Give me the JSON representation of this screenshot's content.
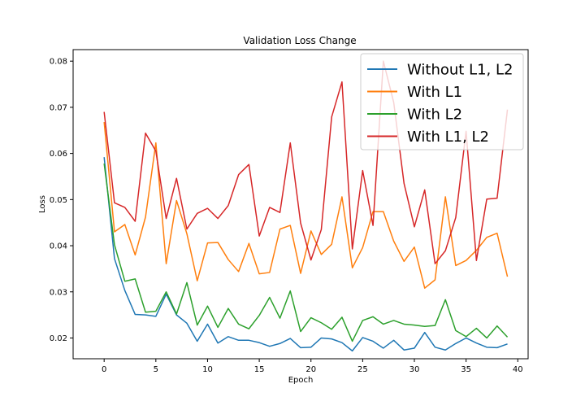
{
  "chart_data": {
    "type": "line",
    "title": "Validation Loss Change",
    "xlabel": "Epoch",
    "ylabel": "Loss",
    "xlim": [
      -3,
      41
    ],
    "ylim": [
      0.0155,
      0.0825
    ],
    "xticks": [
      0,
      5,
      10,
      15,
      20,
      25,
      30,
      35,
      40
    ],
    "yticks": [
      0.02,
      0.03,
      0.04,
      0.05,
      0.06,
      0.07,
      0.08
    ],
    "grid": false,
    "legend_position": "top-right",
    "x": [
      0,
      1,
      2,
      3,
      4,
      5,
      6,
      7,
      8,
      9,
      10,
      11,
      12,
      13,
      14,
      15,
      16,
      17,
      18,
      19,
      20,
      21,
      22,
      23,
      24,
      25,
      26,
      27,
      28,
      29,
      30,
      31,
      32,
      33,
      34,
      35,
      36,
      37,
      38,
      39
    ],
    "series": [
      {
        "name": "Without L1, L2",
        "color": "#1f77b4",
        "values": [
          0.0592,
          0.0372,
          0.0303,
          0.0251,
          0.025,
          0.0247,
          0.0295,
          0.025,
          0.0232,
          0.0193,
          0.023,
          0.0189,
          0.0203,
          0.0195,
          0.0195,
          0.019,
          0.0182,
          0.0188,
          0.0199,
          0.0179,
          0.018,
          0.02,
          0.0198,
          0.019,
          0.0172,
          0.0201,
          0.0193,
          0.0178,
          0.0195,
          0.0174,
          0.0178,
          0.0212,
          0.018,
          0.0174,
          0.0188,
          0.02,
          0.0189,
          0.018,
          0.0179,
          0.0187
        ]
      },
      {
        "name": "With L1",
        "color": "#ff7f0e",
        "values": [
          0.0668,
          0.043,
          0.0446,
          0.038,
          0.0462,
          0.0623,
          0.0361,
          0.0498,
          0.0426,
          0.0324,
          0.0406,
          0.0407,
          0.037,
          0.0344,
          0.0405,
          0.0339,
          0.0342,
          0.0436,
          0.0444,
          0.034,
          0.0432,
          0.0381,
          0.0403,
          0.0506,
          0.0352,
          0.0396,
          0.0474,
          0.0474,
          0.041,
          0.0366,
          0.0397,
          0.0308,
          0.0326,
          0.0506,
          0.0357,
          0.0368,
          0.039,
          0.0418,
          0.0427,
          0.0333
        ]
      },
      {
        "name": "With L2",
        "color": "#2ca02c",
        "values": [
          0.0578,
          0.0402,
          0.0323,
          0.0328,
          0.0256,
          0.0258,
          0.03,
          0.0252,
          0.032,
          0.0228,
          0.0269,
          0.0223,
          0.0264,
          0.023,
          0.022,
          0.0249,
          0.0288,
          0.0243,
          0.0302,
          0.0214,
          0.0244,
          0.0233,
          0.0219,
          0.0245,
          0.0193,
          0.0238,
          0.0246,
          0.023,
          0.0238,
          0.023,
          0.0228,
          0.0225,
          0.0227,
          0.0283,
          0.0216,
          0.0203,
          0.0221,
          0.02,
          0.0226,
          0.0202
        ]
      },
      {
        "name": "With L1, L2",
        "color": "#d62728",
        "values": [
          0.069,
          0.0493,
          0.0483,
          0.0453,
          0.0644,
          0.0605,
          0.0459,
          0.0546,
          0.0436,
          0.047,
          0.0481,
          0.0459,
          0.0487,
          0.0554,
          0.0576,
          0.0421,
          0.0483,
          0.0472,
          0.0623,
          0.0449,
          0.0369,
          0.0435,
          0.0679,
          0.0755,
          0.0393,
          0.0563,
          0.0444,
          0.08,
          0.0711,
          0.0535,
          0.0441,
          0.0521,
          0.0361,
          0.0389,
          0.0461,
          0.0648,
          0.0368,
          0.0501,
          0.0503,
          0.0695
        ]
      }
    ]
  }
}
